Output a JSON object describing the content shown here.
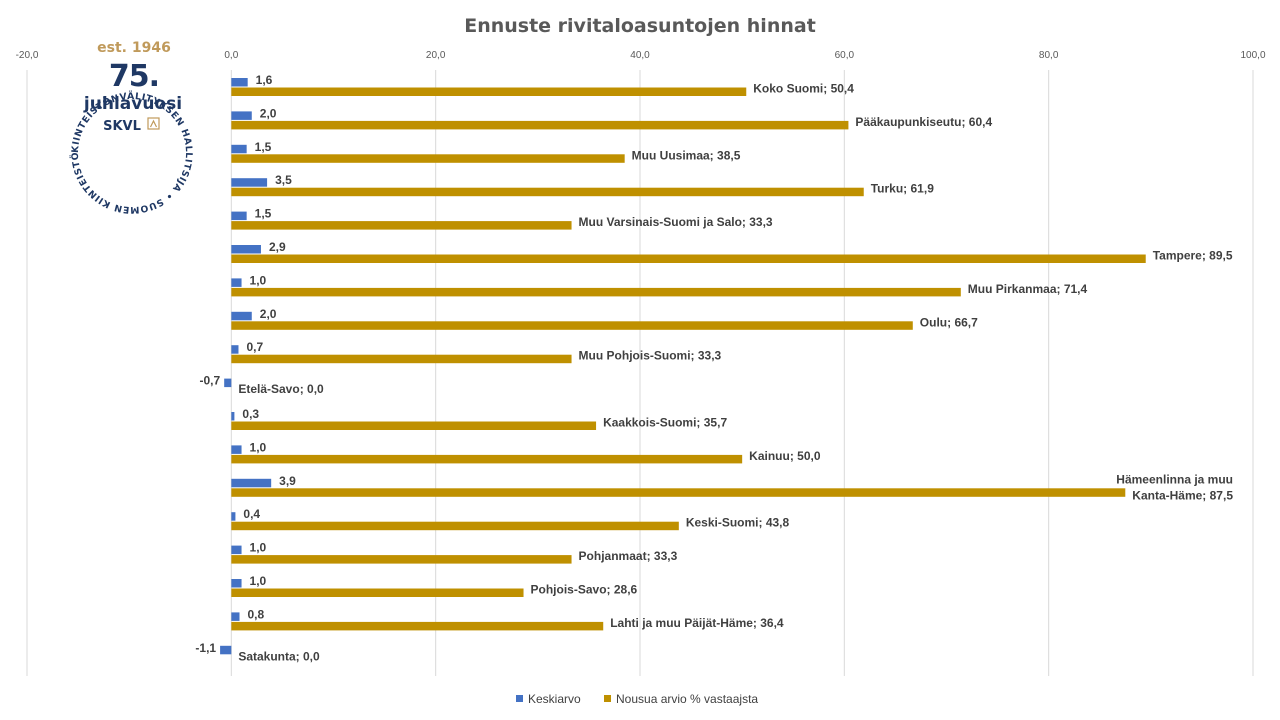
{
  "chart_data": {
    "type": "bar",
    "orientation": "horizontal",
    "title": "Ennuste rivitaloasuntojen hinnat",
    "xlim": [
      -20,
      100
    ],
    "x_ticks": [
      "-20,0",
      "0,0",
      "20,0",
      "40,0",
      "60,0",
      "80,0",
      "100,0"
    ],
    "grid": true,
    "legend_position": "bottom",
    "categories": [
      "Koko Suomi",
      "Pääkaupunkiseutu",
      "Muu Uusimaa",
      "Turku",
      "Muu Varsinais-Suomi ja Salo",
      "Tampere",
      "Muu Pirkanmaa",
      "Oulu",
      "Muu Pohjois-Suomi",
      "Etelä-Savo",
      "Kaakkois-Suomi",
      "Kainuu",
      "Hämeenlinna ja muu Kanta-Häme",
      "Keski-Suomi",
      "Pohjanmaat",
      "Pohjois-Savo",
      "Lahti ja muu Päijät-Häme",
      "Satakunta"
    ],
    "series": [
      {
        "name": "Keskiarvo",
        "color": "#4472c4",
        "values": [
          1.6,
          2.0,
          1.5,
          3.5,
          1.5,
          2.9,
          1.0,
          2.0,
          0.7,
          -0.7,
          0.3,
          1.0,
          3.9,
          0.4,
          1.0,
          1.0,
          0.8,
          -1.1
        ],
        "labels": [
          "1,6",
          "2,0",
          "1,5",
          "3,5",
          "1,5",
          "2,9",
          "1,0",
          "2,0",
          "0,7",
          "-0,7",
          "0,3",
          "1,0",
          "3,9",
          "0,4",
          "1,0",
          "1,0",
          "0,8",
          "-1,1"
        ]
      },
      {
        "name": "Nousua arvio % vastaajsta",
        "color": "#bf9000",
        "values": [
          50.4,
          60.4,
          38.5,
          61.9,
          33.3,
          89.5,
          71.4,
          66.7,
          33.3,
          0.0,
          35.7,
          50.0,
          87.5,
          43.8,
          33.3,
          28.6,
          36.4,
          0.0
        ],
        "labels": [
          "Koko Suomi; 50,4",
          "Pääkaupunkiseutu; 60,4",
          "Muu Uusimaa; 38,5",
          "Turku; 61,9",
          "Muu Varsinais-Suomi ja Salo; 33,3",
          "Tampere; 89,5",
          "Muu Pirkanmaa;  71,4",
          "Oulu; 66,7",
          "Muu Pohjois-Suomi; 33,3",
          "Etelä-Savo; 0,0",
          "Kaakkois-Suomi; 35,7",
          "Kainuu; 50,0",
          "Hämeenlinna ja muu|Kanta-Häme; 87,5",
          "Keski-Suomi; 43,8",
          "Pohjanmaat; 33,3",
          "Pohjois-Savo; 28,6",
          "Lahti ja muu Päijät-Häme;  36,4",
          "Satakunta; 0,0"
        ]
      }
    ]
  },
  "logo": {
    "ring_text": "KIINTEISTÖNVÄLITYKSEN HALLITSIJA • SUOMEN KIINTEISTÖNVÄLITTÄJÄT RY •",
    "est": "est. 1946",
    "number": "75.",
    "word": "juhlavuosi",
    "brand": "SKVL",
    "navy": "#1f3864",
    "gold": "#c09a5b"
  }
}
